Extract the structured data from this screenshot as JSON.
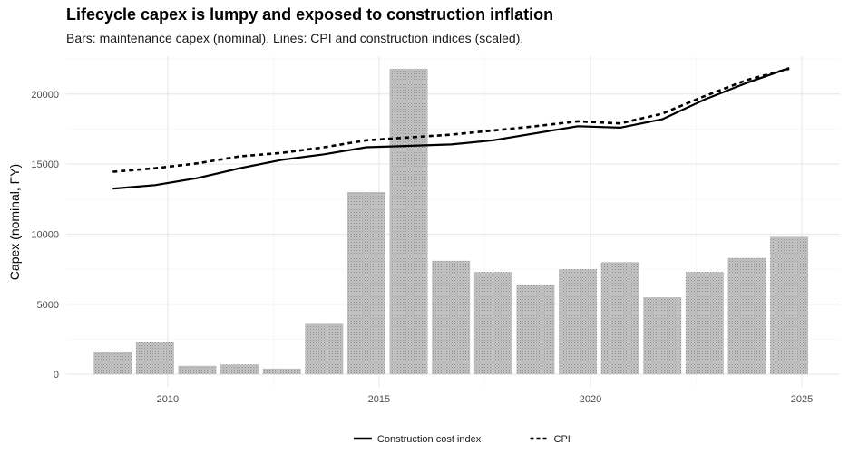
{
  "chart_data": {
    "type": "bar",
    "title": "Lifecycle capex is lumpy and exposed to construction inflation",
    "subtitle": "Bars: maintenance capex (nominal). Lines: CPI and construction indices (scaled).",
    "xlabel": "",
    "ylabel": "Capex (nominal, FY)",
    "xlim": [
      2007.6,
      2025.9
    ],
    "ylim": [
      -900,
      22700
    ],
    "x_ticks": [
      2010,
      2015,
      2020,
      2025
    ],
    "y_ticks": [
      0,
      5000,
      10000,
      15000,
      20000
    ],
    "grid": true,
    "legend_position": "bottom",
    "bars": {
      "x": [
        2008.7,
        2009.7,
        2010.7,
        2011.7,
        2012.7,
        2013.7,
        2014.7,
        2015.7,
        2016.7,
        2017.7,
        2018.7,
        2019.7,
        2020.7,
        2021.7,
        2022.7,
        2023.7,
        2024.7
      ],
      "values": [
        1600,
        2300,
        600,
        700,
        400,
        3600,
        13000,
        21800,
        8100,
        7300,
        6400,
        7500,
        8000,
        5500,
        7300,
        8300,
        9800
      ],
      "color": "#bdbdbd"
    },
    "series": [
      {
        "name": "Construction cost index",
        "style": "solid",
        "color": "#000000",
        "x": [
          2008.7,
          2009.7,
          2010.7,
          2011.7,
          2012.7,
          2013.7,
          2014.7,
          2015.7,
          2016.7,
          2017.7,
          2018.7,
          2019.7,
          2020.7,
          2021.7,
          2022.7,
          2023.7,
          2024.7
        ],
        "values": [
          13250,
          13500,
          14000,
          14700,
          15300,
          15700,
          16200,
          16300,
          16400,
          16700,
          17200,
          17700,
          17600,
          18200,
          19600,
          20800,
          21850
        ]
      },
      {
        "name": "CPI",
        "style": "dashed",
        "color": "#000000",
        "x": [
          2008.7,
          2009.7,
          2010.7,
          2011.7,
          2012.7,
          2013.7,
          2014.7,
          2015.7,
          2016.7,
          2017.7,
          2018.7,
          2019.7,
          2020.7,
          2021.7,
          2022.7,
          2023.7,
          2024.7
        ],
        "values": [
          14450,
          14700,
          15050,
          15550,
          15800,
          16200,
          16700,
          16900,
          17100,
          17400,
          17700,
          18050,
          17900,
          18600,
          19850,
          21000,
          21800
        ]
      }
    ]
  }
}
